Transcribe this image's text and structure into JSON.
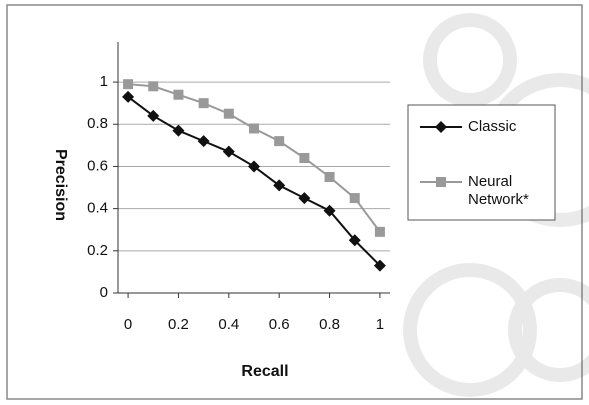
{
  "chart_data": {
    "type": "line",
    "x_label": "Recall",
    "y_label": "Precision",
    "x": [
      0,
      0.1,
      0.2,
      0.3,
      0.4,
      0.5,
      0.6,
      0.7,
      0.8,
      0.9,
      1
    ],
    "series": [
      {
        "name": "Classic",
        "color": "#111111",
        "marker": "diamond",
        "values": [
          0.93,
          0.84,
          0.77,
          0.72,
          0.67,
          0.6,
          0.51,
          0.45,
          0.39,
          0.25,
          0.13
        ]
      },
      {
        "name": "Neural Network*",
        "color": "#999999",
        "marker": "square",
        "values": [
          0.99,
          0.98,
          0.94,
          0.9,
          0.85,
          0.78,
          0.72,
          0.64,
          0.55,
          0.45,
          0.29
        ]
      }
    ],
    "xlim": [
      -0.04,
      1.04
    ],
    "xticks": [
      0,
      0.2,
      0.4,
      0.6,
      0.8,
      1
    ],
    "ylim": [
      0,
      1.19
    ],
    "yticks": [
      0,
      0.2,
      0.4,
      0.6,
      0.8,
      1
    ],
    "grid": true,
    "legend": "right"
  }
}
